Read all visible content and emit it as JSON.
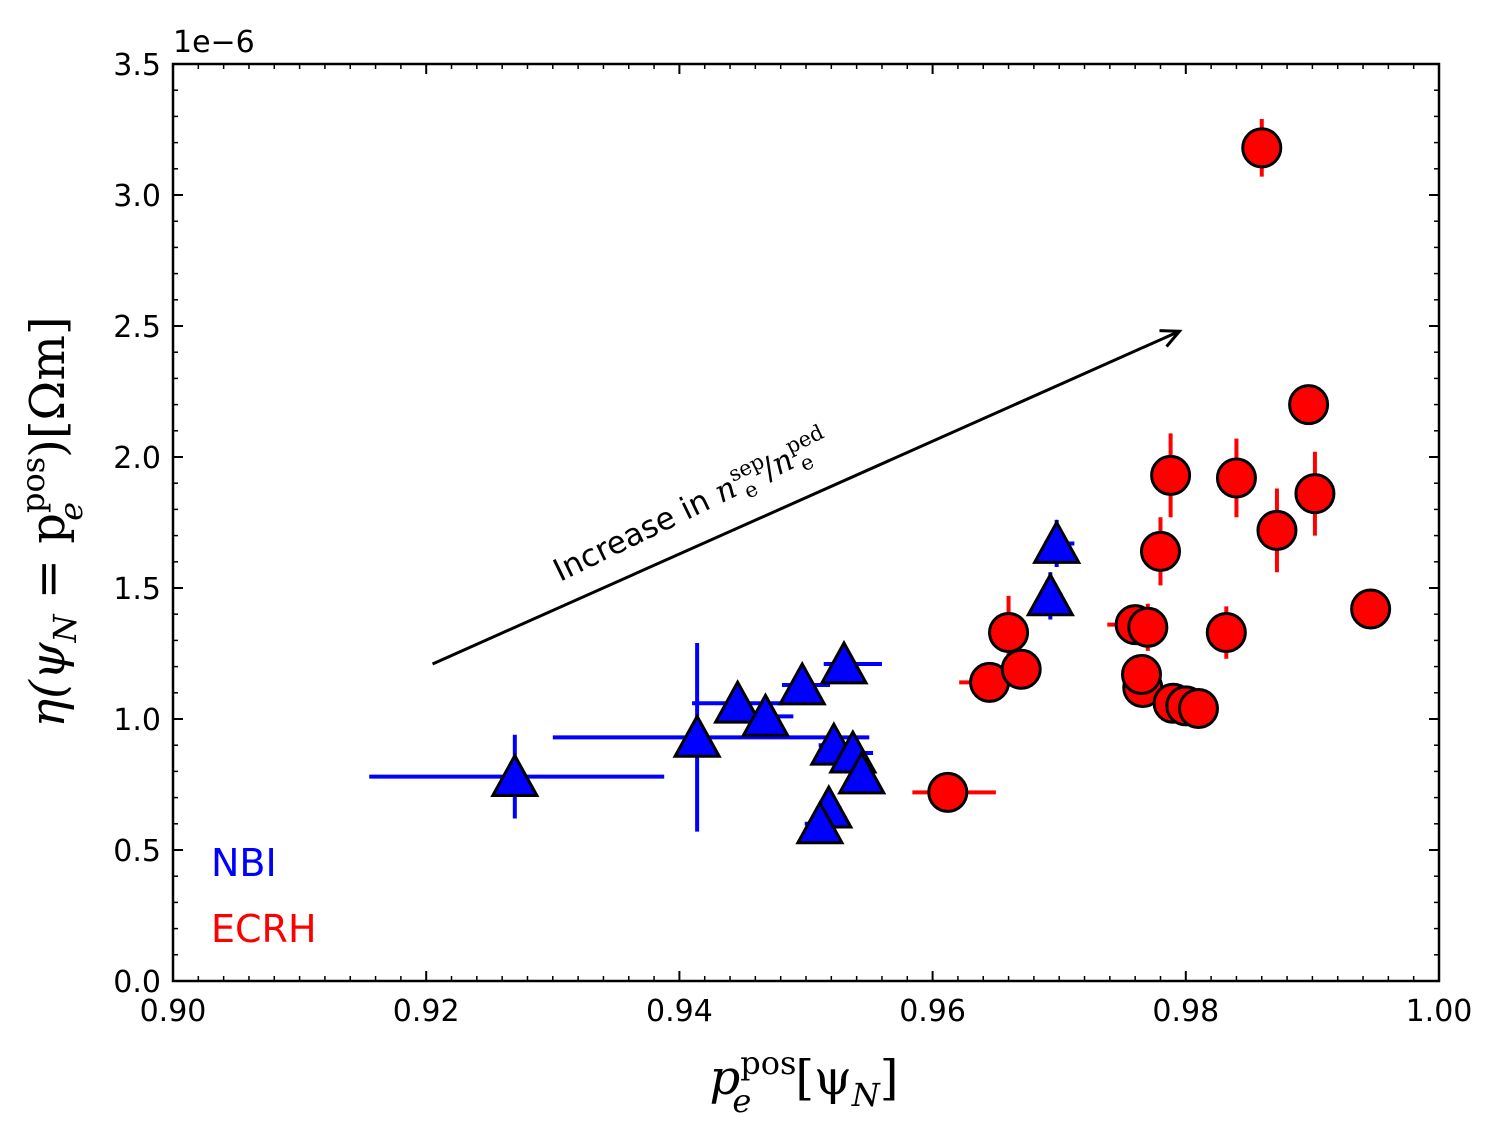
{
  "chart_data": {
    "type": "scatter",
    "x_label": {
      "main": "p",
      "sub": "e",
      "sup": "pos",
      "rest": "[ψ",
      "rest_sub": "N",
      "end": "]"
    },
    "y_label": {
      "pre": "η(ψ",
      "pre_sub": "N",
      "mid": " = p",
      "mid_sub": "e",
      "mid_sup": "pos",
      "end": ")[Ωm]"
    },
    "y_offset_label": "1e−6",
    "xlim": [
      0.9,
      1.0
    ],
    "ylim": [
      0.0,
      3.5
    ],
    "x_ticks": [
      "0.90",
      "0.92",
      "0.94",
      "0.96",
      "0.98",
      "1.00"
    ],
    "y_ticks": [
      "0.0",
      "0.5",
      "1.0",
      "1.5",
      "2.0",
      "2.5",
      "3.0",
      "3.5"
    ],
    "grid": false,
    "legend_placement": "bottom-left",
    "legend": [
      {
        "label": "NBI",
        "color": "#0000ff"
      },
      {
        "label": "ECRH",
        "color": "#ff0000"
      }
    ],
    "annotation": {
      "text_prefix": "Increase in ",
      "n1": "n",
      "n1_sub": "e",
      "n1_sup": "sep",
      "slash": "/",
      "n2": "n",
      "n2_sub": "e",
      "n2_sup": "ped",
      "arrow_from": [
        0.9205,
        1.21
      ],
      "arrow_to": [
        0.9795,
        2.48
      ]
    },
    "series": [
      {
        "name": "NBI",
        "marker": "triangle",
        "color": "#0000ff",
        "points": [
          {
            "x": 0.927,
            "y": 0.78,
            "xerr": [
              0.0115,
              0.0118
            ],
            "yerr": 0.16
          },
          {
            "x": 0.9414,
            "y": 0.93,
            "xerr": [
              0.0114,
              0.0136
            ],
            "yerr": 0.36
          },
          {
            "x": 0.9446,
            "y": 1.06,
            "xerr": [
              0.0036,
              0.0036
            ],
            "yerr": 0.04
          },
          {
            "x": 0.9468,
            "y": 1.01,
            "xerr": [
              0.001,
              0.0022
            ],
            "yerr": 0.03
          },
          {
            "x": 0.9497,
            "y": 1.13,
            "xerr": [
              0.0016,
              0.0022
            ],
            "yerr": 0.04
          },
          {
            "x": 0.953,
            "y": 1.21,
            "xerr": [
              0.0016,
              0.003
            ],
            "yerr": 0.04
          },
          {
            "x": 0.9522,
            "y": 0.9,
            "xerr": [
              0.0012,
              0.0014
            ],
            "yerr": 0.03
          },
          {
            "x": 0.9537,
            "y": 0.87,
            "xerr": [
              0.0012,
              0.0016
            ],
            "yerr": 0.03
          },
          {
            "x": 0.9544,
            "y": 0.79,
            "xerr": [
              0.001,
              0.001
            ],
            "yerr": 0.03
          },
          {
            "x": 0.9518,
            "y": 0.66,
            "xerr": [
              0.001,
              0.001
            ],
            "yerr": 0.03
          },
          {
            "x": 0.9511,
            "y": 0.6,
            "xerr": [
              0.0012,
              0.001
            ],
            "yerr": 0.03
          },
          {
            "x": 0.9693,
            "y": 1.47,
            "xerr": [
              0.0008,
              0.001
            ],
            "yerr": 0.09
          },
          {
            "x": 0.9698,
            "y": 1.67,
            "xerr": [
              0.001,
              0.0014
            ],
            "yerr": 0.09
          }
        ]
      },
      {
        "name": "ECRH",
        "marker": "circle",
        "color": "#ff0000",
        "points": [
          {
            "x": 0.9612,
            "y": 0.72,
            "xerr": [
              0.0028,
              0.0038
            ],
            "yerr": 0.03
          },
          {
            "x": 0.9645,
            "y": 1.14,
            "xerr": [
              0.0024,
              0.0018
            ],
            "yerr": 0.04
          },
          {
            "x": 0.966,
            "y": 1.33,
            "xerr": [
              0.0008,
              0.0008
            ],
            "yerr": 0.14
          },
          {
            "x": 0.967,
            "y": 1.19,
            "xerr": [
              0.0006,
              0.0006
            ],
            "yerr": 0.03
          },
          {
            "x": 0.976,
            "y": 1.36,
            "xerr": [
              0.0022,
              0.0012
            ],
            "yerr": 0.04
          },
          {
            "x": 0.977,
            "y": 1.35,
            "xerr": [
              0.0006,
              0.0006
            ],
            "yerr": 0.09
          },
          {
            "x": 0.9766,
            "y": 1.12,
            "xerr": [
              0.0006,
              0.0006
            ],
            "yerr": 0.04
          },
          {
            "x": 0.9765,
            "y": 1.17,
            "xerr": [
              0.0006,
              0.0006
            ],
            "yerr": 0.03
          },
          {
            "x": 0.978,
            "y": 1.64,
            "xerr": [
              0.0016,
              0.0016
            ],
            "yerr": 0.13
          },
          {
            "x": 0.9788,
            "y": 1.93,
            "xerr": [
              0.0006,
              0.0006
            ],
            "yerr": 0.16
          },
          {
            "x": 0.979,
            "y": 1.06,
            "xerr": [
              0.0006,
              0.0006
            ],
            "yerr": 0.03
          },
          {
            "x": 0.98,
            "y": 1.05,
            "xerr": [
              0.0006,
              0.0006
            ],
            "yerr": 0.03
          },
          {
            "x": 0.981,
            "y": 1.04,
            "xerr": [
              0.0006,
              0.0006
            ],
            "yerr": 0.03
          },
          {
            "x": 0.9832,
            "y": 1.33,
            "xerr": [
              0.0006,
              0.0006
            ],
            "yerr": 0.1
          },
          {
            "x": 0.984,
            "y": 1.92,
            "xerr": [
              0.0006,
              0.0006
            ],
            "yerr": 0.15
          },
          {
            "x": 0.986,
            "y": 3.18,
            "xerr": [
              0.0006,
              0.0006
            ],
            "yerr": 0.11
          },
          {
            "x": 0.9872,
            "y": 1.72,
            "xerr": [
              0.0006,
              0.0006
            ],
            "yerr": 0.16
          },
          {
            "x": 0.9897,
            "y": 2.2,
            "xerr": [
              0.0006,
              0.0006
            ],
            "yerr": 0.03
          },
          {
            "x": 0.9902,
            "y": 1.86,
            "xerr": [
              0.0006,
              0.0006
            ],
            "yerr": 0.16
          },
          {
            "x": 0.9946,
            "y": 1.42,
            "xerr": [
              0.0006,
              0.0006
            ],
            "yerr": 0.03
          }
        ]
      }
    ]
  }
}
